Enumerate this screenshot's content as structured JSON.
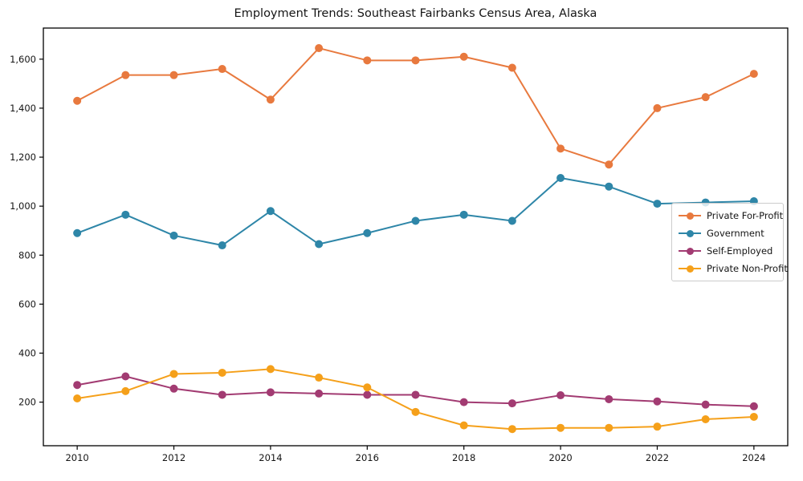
{
  "figure": {
    "title": "Employment Trends: Southeast Fairbanks Census Area, Alaska"
  },
  "chart_data": {
    "type": "line",
    "title": "Employment Trends: Southeast Fairbanks Census Area, Alaska",
    "xlabel": "",
    "ylabel": "",
    "grid": false,
    "legend_position": "center-right",
    "x": [
      2010,
      2011,
      2012,
      2013,
      2014,
      2015,
      2016,
      2017,
      2018,
      2019,
      2020,
      2021,
      2022,
      2023,
      2024
    ],
    "xticks": [
      2010,
      2012,
      2014,
      2016,
      2018,
      2020,
      2022,
      2024
    ],
    "yticks": [
      200,
      400,
      600,
      800,
      1000,
      1200,
      1400,
      1600
    ],
    "xlim": [
      2009.3,
      2024.7
    ],
    "ylim": [
      22,
      1727
    ],
    "axis_color": "#000000",
    "tick_label_color": "#151515",
    "series": [
      {
        "name": "Private For-Profit",
        "color": "#E8793E",
        "values": [
          1430,
          1535,
          1535,
          1560,
          1435,
          1645,
          1595,
          1595,
          1610,
          1565,
          1235,
          1170,
          1400,
          1445,
          1540
        ]
      },
      {
        "name": "Government",
        "color": "#2E86A8",
        "values": [
          890,
          965,
          880,
          840,
          980,
          845,
          890,
          940,
          965,
          940,
          1115,
          1080,
          1010,
          1015,
          1020
        ]
      },
      {
        "name": "Self-Employed",
        "color": "#A23B72",
        "values": [
          270,
          305,
          255,
          230,
          240,
          235,
          230,
          230,
          200,
          195,
          228,
          212,
          203,
          190,
          183
        ]
      },
      {
        "name": "Private Non-Profit",
        "color": "#F5A01A",
        "values": [
          215,
          245,
          315,
          320,
          335,
          300,
          260,
          160,
          105,
          90,
          95,
          95,
          100,
          130,
          140
        ]
      }
    ]
  }
}
